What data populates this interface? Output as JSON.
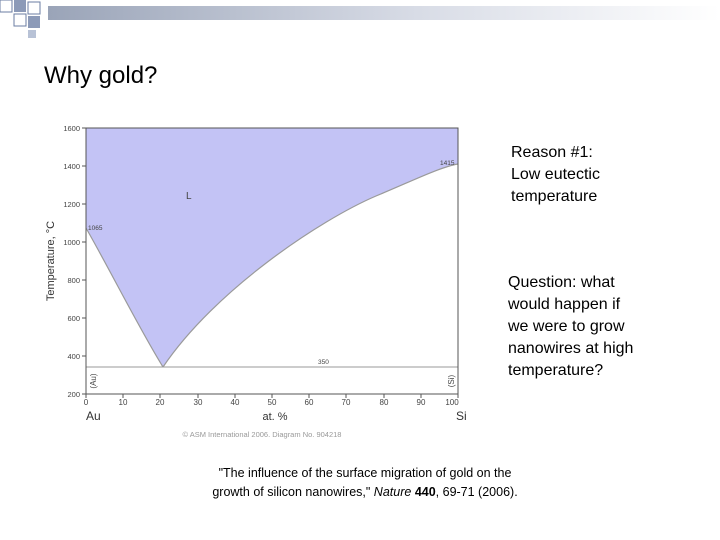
{
  "slide": {
    "title": "Why gold?",
    "reason_lines": [
      "Reason #1:",
      "Low eutectic",
      "temperature"
    ],
    "question_lines": [
      "Question: what",
      "would happen if",
      "we were to grow",
      "nanowires at high",
      "temperature?"
    ],
    "citation": {
      "line1": "\"The influence of the surface migration of gold on the",
      "line2_prefix": "growth of silicon nanowires,\" ",
      "journal": "Nature",
      "volume": "440",
      "pages": ", 69-71 (2006)."
    }
  },
  "diagram": {
    "y_axis_label": "Temperature, °C",
    "y_ticks": [
      "1600",
      "1400",
      "1200",
      "1000",
      "800",
      "600",
      "400",
      "200"
    ],
    "x_ticks": [
      "0",
      "10",
      "20",
      "30",
      "40",
      "50",
      "60",
      "70",
      "80",
      "90",
      "100"
    ],
    "x_axis_label": "at. %",
    "left_element": "Au",
    "right_element": "Si",
    "liquid_label": "L",
    "au_melting": "1065",
    "si_melting": "1415",
    "eutectic_temp": "350",
    "left_solid": "(Au)",
    "right_solid": "(Si)",
    "copyright": "© ASM International 2006.    Diagram No. 904218",
    "colors": {
      "liquid_fill": "#c3c3f5",
      "line": "#9a9a9a"
    }
  }
}
